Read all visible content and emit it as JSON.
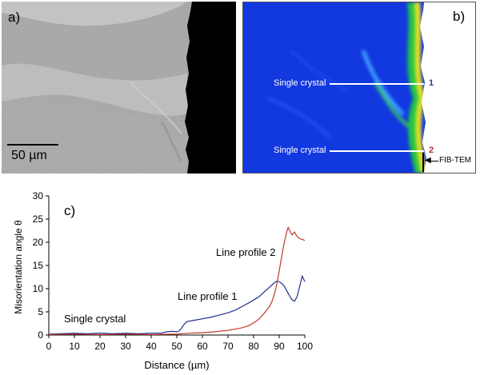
{
  "panel_a": {
    "label": "a)",
    "scale_bar": "50 µm"
  },
  "panel_b": {
    "label": "b)",
    "annotations": [
      {
        "text": "Single crystal",
        "marker": "1",
        "marker_color": "#1f3a9e"
      },
      {
        "text": "Single crystal",
        "marker": "2",
        "marker_color": "#b03030"
      }
    ],
    "arrow_label": "FIB-TEM"
  },
  "panel_c": {
    "label": "c)",
    "annotations": [
      "Single crystal",
      "Line profile 1",
      "Line profile 2"
    ]
  },
  "colors": {
    "profile_1": "#1f2f8f",
    "profile_2": "#c0392b",
    "map_blue": "#1238e0",
    "map_green": "#22c940",
    "map_yellow": "#f2e21c"
  },
  "chart_data": {
    "type": "line",
    "xlabel": "Distance (µm)",
    "ylabel": "Misorientation angle θ",
    "xlim": [
      0,
      100
    ],
    "ylim": [
      0,
      30
    ],
    "xticks": [
      0,
      10,
      20,
      30,
      40,
      50,
      60,
      70,
      80,
      90,
      100
    ],
    "yticks": [
      0,
      5,
      10,
      15,
      20,
      25,
      30
    ],
    "grid": false,
    "series": [
      {
        "name": "Line profile 1",
        "color": "#1f2f8f",
        "x": [
          0,
          5,
          10,
          15,
          20,
          25,
          30,
          35,
          40,
          44,
          46,
          48,
          50,
          51,
          52,
          53,
          54,
          56,
          58,
          60,
          63,
          66,
          70,
          73,
          76,
          79,
          82,
          84,
          86,
          88,
          89,
          90,
          91,
          92,
          93,
          94,
          95,
          96,
          97,
          98,
          99,
          100
        ],
        "values": [
          0.2,
          0.3,
          0.4,
          0.3,
          0.4,
          0.3,
          0.4,
          0.3,
          0.4,
          0.4,
          0.7,
          0.8,
          0.7,
          0.9,
          1.6,
          2.4,
          2.9,
          3.1,
          3.3,
          3.5,
          3.8,
          4.2,
          4.8,
          5.4,
          6.3,
          7.2,
          8.2,
          9.2,
          10.2,
          11.2,
          11.6,
          11.5,
          11.1,
          10.5,
          9.5,
          8.5,
          7.6,
          7.3,
          8.3,
          10.5,
          12.7,
          11.5
        ]
      },
      {
        "name": "Line profile 2",
        "color": "#c0392b",
        "x": [
          0,
          10,
          20,
          30,
          40,
          50,
          52,
          55,
          60,
          65,
          70,
          75,
          78,
          80,
          82,
          84,
          86,
          87,
          88,
          89,
          90,
          91,
          92,
          93,
          93.5,
          94,
          95,
          96,
          97,
          98,
          99,
          100
        ],
        "values": [
          0.1,
          0.2,
          0.1,
          0.2,
          0.1,
          0.2,
          0.3,
          0.4,
          0.5,
          0.7,
          1.0,
          1.5,
          2.0,
          2.6,
          3.4,
          4.6,
          6.0,
          7.0,
          8.6,
          10.8,
          13.8,
          17.0,
          20.0,
          22.4,
          23.2,
          22.6,
          21.6,
          22.2,
          21.2,
          20.8,
          20.6,
          20.4
        ]
      }
    ]
  }
}
